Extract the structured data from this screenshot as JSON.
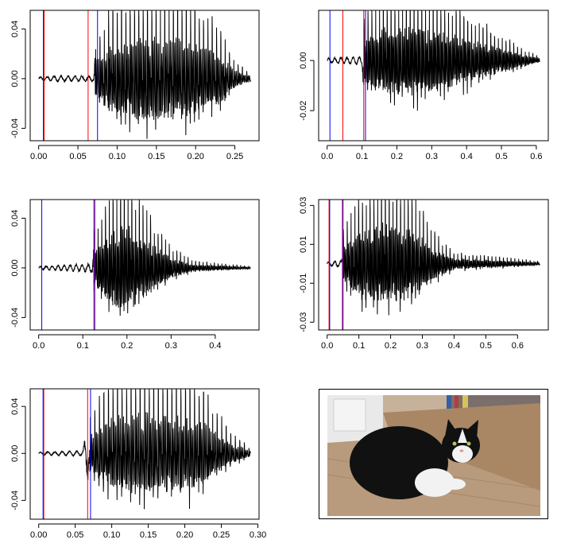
{
  "chart_data": [
    {
      "type": "line",
      "title": "",
      "xlabel": "",
      "ylabel": "",
      "xlim": [
        0.0,
        0.27
      ],
      "ylim": [
        -0.05,
        0.055
      ],
      "xticks": [
        "0.00",
        "0.05",
        "0.10",
        "0.15",
        "0.20",
        "0.25"
      ],
      "xtick_values": [
        0.0,
        0.05,
        0.1,
        0.15,
        0.2,
        0.25
      ],
      "yticks": [
        "-0.04",
        "0.00",
        "0.04"
      ],
      "ytick_values": [
        -0.04,
        0.0,
        0.04
      ],
      "series": [
        {
          "name": "waveform",
          "color": "#000000",
          "onset": 0.072,
          "peak_time": 0.15,
          "duration": 0.27,
          "pitch_period": 0.0055,
          "envelope": [
            [
              0.0,
              0.001
            ],
            [
              0.02,
              0.002
            ],
            [
              0.07,
              0.002
            ],
            [
              0.072,
              0.02
            ],
            [
              0.09,
              0.04
            ],
            [
              0.13,
              0.048
            ],
            [
              0.18,
              0.046
            ],
            [
              0.23,
              0.03
            ],
            [
              0.25,
              0.01
            ],
            [
              0.27,
              0.003
            ]
          ]
        }
      ],
      "markers": [
        {
          "x": 0.006,
          "color": "#0000ff"
        },
        {
          "x": 0.007,
          "color": "#ff0000"
        },
        {
          "x": 0.063,
          "color": "#ff0000"
        },
        {
          "x": 0.075,
          "color": "#0000ff"
        }
      ]
    },
    {
      "type": "line",
      "title": "",
      "xlabel": "",
      "ylabel": "",
      "xlim": [
        0.0,
        0.61
      ],
      "ylim": [
        -0.032,
        0.02
      ],
      "xticks": [
        "0.0",
        "0.1",
        "0.2",
        "0.3",
        "0.4",
        "0.5",
        "0.6"
      ],
      "xtick_values": [
        0.0,
        0.1,
        0.2,
        0.3,
        0.4,
        0.5,
        0.6
      ],
      "yticks": [
        "-0.02",
        "0.00"
      ],
      "ytick_values": [
        -0.02,
        0.0
      ],
      "series": [
        {
          "name": "waveform",
          "color": "#000000",
          "onset": 0.105,
          "peak_time": 0.22,
          "duration": 0.61,
          "pitch_period": 0.011,
          "envelope": [
            [
              0.0,
              0.0008
            ],
            [
              0.1,
              0.0015
            ],
            [
              0.105,
              0.012
            ],
            [
              0.15,
              0.018
            ],
            [
              0.25,
              0.02
            ],
            [
              0.35,
              0.016
            ],
            [
              0.45,
              0.01
            ],
            [
              0.55,
              0.004
            ],
            [
              0.61,
              0.001
            ]
          ]
        }
      ],
      "markers": [
        {
          "x": 0.008,
          "color": "#0000ff"
        },
        {
          "x": 0.045,
          "color": "#ff0000"
        },
        {
          "x": 0.105,
          "color": "#ff0000"
        },
        {
          "x": 0.11,
          "color": "#0000ff"
        }
      ]
    },
    {
      "type": "line",
      "title": "",
      "xlabel": "",
      "ylabel": "",
      "xlim": [
        0.0,
        0.48
      ],
      "ylim": [
        -0.05,
        0.055
      ],
      "xticks": [
        "0.0",
        "0.1",
        "0.2",
        "0.3",
        "0.4"
      ],
      "xtick_values": [
        0.0,
        0.1,
        0.2,
        0.3,
        0.4
      ],
      "yticks": [
        "-0.04",
        "0.00",
        "0.04"
      ],
      "ytick_values": [
        -0.04,
        0.0,
        0.04
      ],
      "series": [
        {
          "name": "waveform",
          "color": "#000000",
          "onset": 0.125,
          "peak_time": 0.19,
          "duration": 0.48,
          "pitch_period": 0.0085,
          "envelope": [
            [
              0.0,
              0.001
            ],
            [
              0.12,
              0.003
            ],
            [
              0.125,
              0.02
            ],
            [
              0.17,
              0.045
            ],
            [
              0.2,
              0.05
            ],
            [
              0.25,
              0.03
            ],
            [
              0.3,
              0.012
            ],
            [
              0.35,
              0.004
            ],
            [
              0.48,
              0.001
            ]
          ]
        }
      ],
      "markers": [
        {
          "x": 0.007,
          "color": "#0000ff"
        },
        {
          "x": 0.125,
          "color": "#ff0000"
        },
        {
          "x": 0.127,
          "color": "#0000ff"
        }
      ]
    },
    {
      "type": "line",
      "title": "",
      "xlabel": "",
      "ylabel": "",
      "xlim": [
        0.0,
        0.67
      ],
      "ylim": [
        -0.034,
        0.033
      ],
      "xticks": [
        "0.0",
        "0.1",
        "0.2",
        "0.3",
        "0.4",
        "0.5",
        "0.6"
      ],
      "xtick_values": [
        0.0,
        0.1,
        0.2,
        0.3,
        0.4,
        0.5,
        0.6
      ],
      "yticks": [
        "-0.03",
        "-0.01",
        "0.01",
        "0.03"
      ],
      "ytick_values": [
        -0.03,
        -0.01,
        0.01,
        0.03
      ],
      "series": [
        {
          "name": "waveform",
          "color": "#000000",
          "onset": 0.05,
          "peak_time": 0.18,
          "duration": 0.67,
          "pitch_period": 0.012,
          "envelope": [
            [
              0.0,
              0.0008
            ],
            [
              0.045,
              0.0015
            ],
            [
              0.05,
              0.012
            ],
            [
              0.1,
              0.025
            ],
            [
              0.18,
              0.03
            ],
            [
              0.28,
              0.024
            ],
            [
              0.33,
              0.012
            ],
            [
              0.4,
              0.004
            ],
            [
              0.5,
              0.003
            ],
            [
              0.67,
              0.001
            ]
          ]
        }
      ],
      "markers": [
        {
          "x": 0.006,
          "color": "#ff0000"
        },
        {
          "x": 0.008,
          "color": "#0000ff"
        },
        {
          "x": 0.048,
          "color": "#ff0000"
        },
        {
          "x": 0.05,
          "color": "#0000ff"
        }
      ]
    },
    {
      "type": "line",
      "title": "",
      "xlabel": "",
      "ylabel": "",
      "xlim": [
        0.0,
        0.29
      ],
      "ylim": [
        -0.056,
        0.055
      ],
      "xticks": [
        "0.00",
        "0.05",
        "0.10",
        "0.15",
        "0.20",
        "0.25",
        "0.30"
      ],
      "xtick_values": [
        0.0,
        0.05,
        0.1,
        0.15,
        0.2,
        0.25,
        0.3
      ],
      "yticks": [
        "-0.04",
        "0.00",
        "0.04"
      ],
      "ytick_values": [
        -0.04,
        0.0,
        0.04
      ],
      "series": [
        {
          "name": "waveform",
          "color": "#000000",
          "onset": 0.07,
          "peak_time": 0.16,
          "duration": 0.29,
          "pitch_period": 0.0062,
          "envelope": [
            [
              0.0,
              0.001
            ],
            [
              0.06,
              0.002
            ],
            [
              0.07,
              0.025
            ],
            [
              0.1,
              0.045
            ],
            [
              0.15,
              0.05
            ],
            [
              0.22,
              0.042
            ],
            [
              0.26,
              0.015
            ],
            [
              0.29,
              0.003
            ]
          ]
        }
      ],
      "markers": [
        {
          "x": 0.006,
          "color": "#0000ff"
        },
        {
          "x": 0.007,
          "color": "#ff0000"
        },
        {
          "x": 0.067,
          "color": "#ff0000"
        },
        {
          "x": 0.071,
          "color": "#0000ff"
        }
      ]
    }
  ],
  "photo": {
    "subject": "cat-photo",
    "colors": {
      "floor": "#b89a7c",
      "box": "#a98764",
      "wall": "#e9e9e9",
      "cat_black": "#111111",
      "cat_white": "#f2f2f2"
    }
  }
}
